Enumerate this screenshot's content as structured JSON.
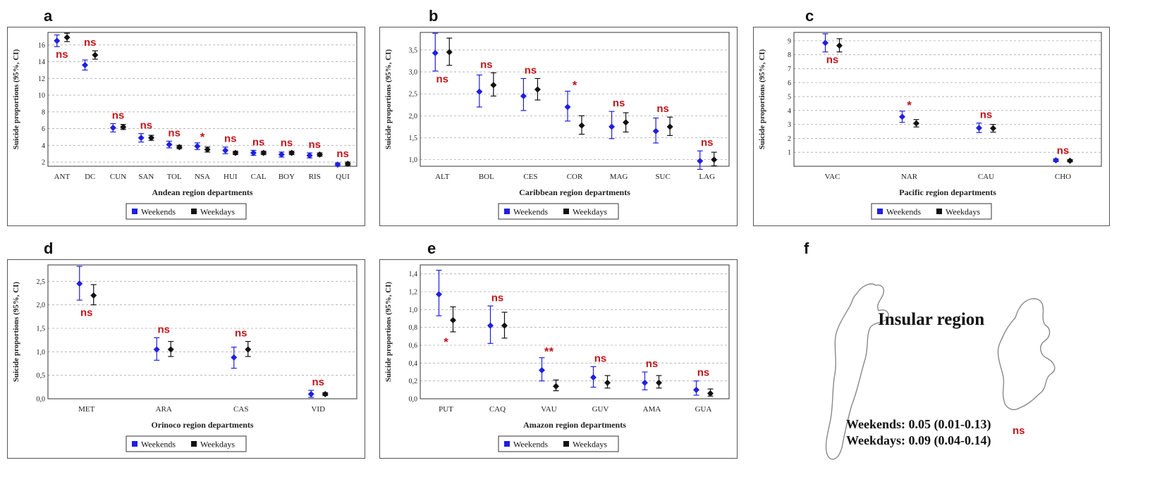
{
  "panels": {
    "a": "a",
    "b": "b",
    "c": "c",
    "d": "d",
    "e": "e",
    "f": "f"
  },
  "colors": {
    "weekends": "#1f1fe0",
    "weekdays": "#111111",
    "significance": "#c0161b"
  },
  "legend": {
    "weekends": "Weekends",
    "weekdays": "Weekdays"
  },
  "insular": {
    "title": "Insular region",
    "weekends_line": "Weekends: 0.05 (0.01-0.13)",
    "weekdays_line": "Weekdays: 0.09 (0.04-0.14)",
    "significance": "ns"
  },
  "chart_data": [
    {
      "id": "a",
      "type": "errorbar",
      "xlabel": "Andean region departments",
      "ylabel": "Suicide proportions (95%, CI)",
      "ylim": [
        1.5,
        17.5
      ],
      "yticks": [
        "2",
        "4",
        "6",
        "8",
        "10",
        "12",
        "14",
        "16"
      ],
      "grid": true,
      "legend": "bottom",
      "categories": [
        "ANT",
        "DC",
        "CUN",
        "SAN",
        "TOL",
        "NSA",
        "HUI",
        "CAL",
        "BOY",
        "RIS",
        "QUI"
      ],
      "series": [
        {
          "name": "Weekends",
          "values": [
            16.5,
            13.6,
            6.1,
            4.9,
            4.1,
            3.9,
            3.4,
            3.1,
            2.9,
            2.8,
            1.7
          ],
          "lower": [
            15.8,
            13.0,
            5.6,
            4.4,
            3.7,
            3.5,
            3.0,
            2.8,
            2.6,
            2.5,
            1.5
          ],
          "upper": [
            17.2,
            14.2,
            6.6,
            5.4,
            4.5,
            4.3,
            3.8,
            3.4,
            3.2,
            3.1,
            1.9
          ]
        },
        {
          "name": "Weekdays",
          "values": [
            16.9,
            14.8,
            6.2,
            4.9,
            3.8,
            3.5,
            3.1,
            3.1,
            3.1,
            2.9,
            1.8
          ],
          "lower": [
            16.4,
            14.3,
            5.9,
            4.6,
            3.6,
            3.2,
            2.9,
            2.9,
            2.9,
            2.7,
            1.6
          ],
          "upper": [
            17.4,
            15.3,
            6.5,
            5.2,
            4.0,
            3.8,
            3.3,
            3.3,
            3.3,
            3.1,
            2.0
          ]
        }
      ],
      "annotations": [
        "ns",
        "ns",
        "ns",
        "ns",
        "ns",
        "*",
        "ns",
        "ns",
        "ns",
        "ns",
        "ns"
      ]
    },
    {
      "id": "b",
      "type": "errorbar",
      "xlabel": "Caribbean region departments",
      "ylabel": "Suicide proportions (95%, CI)",
      "ylim": [
        0.85,
        3.9
      ],
      "yticks": [
        "1,0",
        "1,5",
        "2,0",
        "2,5",
        "3,0",
        "3,5"
      ],
      "grid": true,
      "legend": "bottom",
      "categories": [
        "ALT",
        "BOL",
        "CES",
        "COR",
        "MAG",
        "SUC",
        "LAG"
      ],
      "series": [
        {
          "name": "Weekends",
          "values": [
            3.43,
            2.55,
            2.45,
            2.2,
            1.75,
            1.65,
            0.97
          ],
          "lower": [
            3.02,
            2.2,
            2.12,
            1.88,
            1.48,
            1.38,
            0.78
          ],
          "upper": [
            3.88,
            2.93,
            2.85,
            2.56,
            2.1,
            1.95,
            1.2
          ]
        },
        {
          "name": "Weekdays",
          "values": [
            3.45,
            2.7,
            2.6,
            1.78,
            1.85,
            1.75,
            1.0
          ],
          "lower": [
            3.15,
            2.45,
            2.36,
            1.58,
            1.63,
            1.55,
            0.86
          ],
          "upper": [
            3.77,
            2.98,
            2.85,
            2.0,
            2.07,
            1.97,
            1.17
          ]
        }
      ],
      "annotations": [
        "ns",
        "ns",
        "ns",
        "*",
        "ns",
        "ns",
        "ns"
      ]
    },
    {
      "id": "c",
      "type": "errorbar",
      "xlabel": "Pacific region departments",
      "ylabel": "Suicide proportions (95%, CI)",
      "ylim": [
        0,
        9.6
      ],
      "yticks": [
        "1",
        "2",
        "3",
        "4",
        "5",
        "6",
        "7",
        "8",
        "9"
      ],
      "grid": true,
      "legend": "bottom",
      "categories": [
        "VAC",
        "NAR",
        "CAU",
        "CHO"
      ],
      "series": [
        {
          "name": "Weekends",
          "values": [
            8.85,
            3.55,
            2.75,
            0.43
          ],
          "lower": [
            8.2,
            3.15,
            2.42,
            0.33
          ],
          "upper": [
            9.5,
            3.95,
            3.1,
            0.53
          ]
        },
        {
          "name": "Weekdays",
          "values": [
            8.65,
            3.08,
            2.72,
            0.4
          ],
          "lower": [
            8.2,
            2.82,
            2.45,
            0.32
          ],
          "upper": [
            9.15,
            3.35,
            3.0,
            0.48
          ]
        }
      ],
      "annotations": [
        "ns",
        "*",
        "ns",
        "ns"
      ]
    },
    {
      "id": "d",
      "type": "errorbar",
      "xlabel": "Orinoco region departments",
      "ylabel": "Suicide proportions (95%, CI)",
      "ylim": [
        0,
        2.85
      ],
      "yticks": [
        "0,0",
        "0,5",
        "1,0",
        "1,5",
        "2,0",
        "2,5"
      ],
      "grid": true,
      "legend": "bottom",
      "categories": [
        "MET",
        "ARA",
        "CAS",
        "VID"
      ],
      "series": [
        {
          "name": "Weekends",
          "values": [
            2.45,
            1.05,
            0.88,
            0.1
          ],
          "lower": [
            2.1,
            0.82,
            0.65,
            0.03
          ],
          "upper": [
            2.82,
            1.3,
            1.1,
            0.18
          ]
        },
        {
          "name": "Weekdays",
          "values": [
            2.2,
            1.05,
            1.05,
            0.1
          ],
          "lower": [
            2.0,
            0.9,
            0.9,
            0.07
          ],
          "upper": [
            2.43,
            1.22,
            1.22,
            0.13
          ]
        }
      ],
      "annotations": [
        "ns",
        "ns",
        "ns",
        "ns"
      ]
    },
    {
      "id": "e",
      "type": "errorbar",
      "xlabel": "Amazon region departments",
      "ylabel": "Suicide proportions (95%, CI)",
      "ylim": [
        0,
        1.5
      ],
      "yticks": [
        "0,0",
        "0,2",
        "0,4",
        "0,6",
        "0,8",
        "1,0",
        "1,2",
        "1,4"
      ],
      "grid": true,
      "legend": "bottom",
      "categories": [
        "PUT",
        "CAQ",
        "VAU",
        "GUV",
        "AMA",
        "GUA"
      ],
      "series": [
        {
          "name": "Weekends",
          "values": [
            1.17,
            0.82,
            0.32,
            0.24,
            0.18,
            0.1
          ],
          "lower": [
            0.93,
            0.62,
            0.2,
            0.13,
            0.1,
            0.04
          ],
          "upper": [
            1.44,
            1.04,
            0.46,
            0.36,
            0.3,
            0.2
          ]
        },
        {
          "name": "Weekdays",
          "values": [
            0.88,
            0.82,
            0.14,
            0.18,
            0.18,
            0.06
          ],
          "lower": [
            0.75,
            0.68,
            0.09,
            0.12,
            0.12,
            0.03
          ],
          "upper": [
            1.03,
            0.97,
            0.21,
            0.26,
            0.26,
            0.11
          ]
        }
      ],
      "annotations": [
        "*",
        "ns",
        "**",
        "ns",
        "ns",
        "ns"
      ]
    }
  ]
}
